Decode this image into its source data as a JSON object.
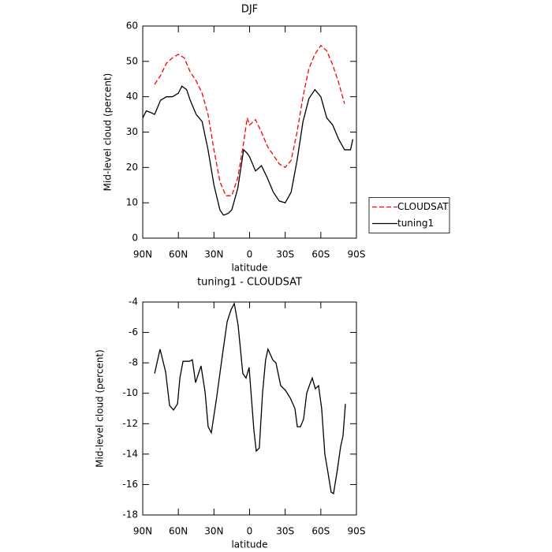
{
  "chart_data": [
    {
      "type": "line",
      "title": "DJF",
      "xlabel": "latitude",
      "ylabel": "Mid-level cloud (percent)",
      "xlim": [
        90,
        -90
      ],
      "xticks": [
        {
          "value": 90,
          "label": "90N"
        },
        {
          "value": 60,
          "label": "60N"
        },
        {
          "value": 30,
          "label": "30N"
        },
        0,
        {
          "value": -30,
          "label": "30S"
        },
        {
          "value": -60,
          "label": "60S"
        },
        {
          "value": -90,
          "label": "90S"
        }
      ],
      "ylim": [
        0,
        60
      ],
      "yticks": [
        0,
        10,
        20,
        30,
        40,
        50,
        60
      ],
      "legend": "right",
      "series": [
        {
          "name": "CLOUDSAT",
          "color": "#ff0000",
          "dashed": true,
          "x": [
            80,
            75,
            70,
            65,
            60,
            55,
            50,
            45,
            40,
            35,
            30,
            25,
            20,
            15,
            10,
            5,
            2,
            0,
            -5,
            -10,
            -15,
            -20,
            -25,
            -30,
            -35,
            -40,
            -45,
            -50,
            -55,
            -60,
            -65,
            -70,
            -75,
            -80
          ],
          "values": [
            43.5,
            46,
            49.5,
            51,
            52,
            51,
            47,
            44.5,
            41,
            35,
            25,
            16,
            12,
            12,
            17,
            27,
            34,
            32,
            33.5,
            30,
            26,
            23.5,
            21,
            20,
            22,
            30,
            40,
            48,
            52,
            54.5,
            53,
            49,
            44,
            38
          ]
        },
        {
          "name": "tuning1",
          "color": "#000000",
          "dashed": false,
          "x": [
            90,
            87,
            83,
            80,
            75,
            70,
            65,
            60,
            57,
            53,
            50,
            45,
            40,
            35,
            30,
            25,
            22,
            18,
            15,
            10,
            5,
            2,
            0,
            -5,
            -10,
            -15,
            -20,
            -25,
            -30,
            -35,
            -40,
            -45,
            -50,
            -55,
            -60,
            -65,
            -70,
            -75,
            -80,
            -85,
            -87
          ],
          "values": [
            34,
            36,
            35.5,
            35,
            39,
            40,
            40,
            41,
            43,
            42,
            39,
            35,
            33,
            25,
            15,
            8,
            6.5,
            7,
            8,
            14,
            25,
            24,
            23,
            19,
            20.5,
            17,
            13,
            10.5,
            10,
            13,
            22,
            33,
            39.5,
            42,
            40,
            34,
            32,
            28,
            25,
            25,
            28
          ]
        }
      ]
    },
    {
      "type": "line",
      "title": "tuning1 - CLOUDSAT",
      "xlabel": "latitude",
      "ylabel": "Mid-level cloud (percent)",
      "xlim": [
        90,
        -90
      ],
      "xticks": [
        {
          "value": 90,
          "label": "90N"
        },
        {
          "value": 60,
          "label": "60N"
        },
        {
          "value": 30,
          "label": "30N"
        },
        0,
        {
          "value": -30,
          "label": "30S"
        },
        {
          "value": -60,
          "label": "60S"
        },
        {
          "value": -90,
          "label": "90S"
        }
      ],
      "ylim": [
        -18,
        -4
      ],
      "yticks": [
        -18,
        -16,
        -14,
        -12,
        -10,
        -8,
        -6,
        -4
      ],
      "series": [
        {
          "color": "#000000",
          "dashed": false,
          "x": [
            80,
            75.4,
            70.7,
            67.4,
            64.1,
            60.7,
            58.7,
            56.1,
            50.8,
            48.2,
            45.5,
            40.9,
            37.5,
            34.9,
            32.2,
            27.6,
            22.9,
            18.9,
            15.6,
            12.9,
            9.7,
            5.7,
            3,
            0.4,
            -3.6,
            -5.6,
            -8.2,
            -10.9,
            -13.5,
            -15.5,
            -19.5,
            -22.2,
            -26.2,
            -30.2,
            -34.2,
            -38.2,
            -40.2,
            -42.8,
            -45.5,
            -48.1,
            -50.8,
            -52.8,
            -55.4,
            -58.1,
            -60.7,
            -63.4,
            -66,
            -68.7,
            -70.7,
            -74,
            -76.7,
            -78.7,
            -80.7
          ],
          "values": [
            -8.7,
            -7.1,
            -8.6,
            -10.8,
            -11.1,
            -10.7,
            -9,
            -7.9,
            -7.9,
            -7.8,
            -9.3,
            -8.2,
            -9.9,
            -12.2,
            -12.6,
            -10.2,
            -7.5,
            -5.3,
            -4.5,
            -4.1,
            -5.5,
            -8.7,
            -9,
            -8.3,
            -12.4,
            -13.8,
            -13.6,
            -10,
            -7.8,
            -7.1,
            -7.8,
            -8,
            -9.5,
            -9.8,
            -10.3,
            -11,
            -12.2,
            -12.2,
            -11.7,
            -10,
            -9.4,
            -9,
            -9.7,
            -9.5,
            -11,
            -14,
            -15.2,
            -16.5,
            -16.6,
            -15,
            -13.5,
            -12.8,
            -10.7
          ]
        }
      ]
    }
  ]
}
